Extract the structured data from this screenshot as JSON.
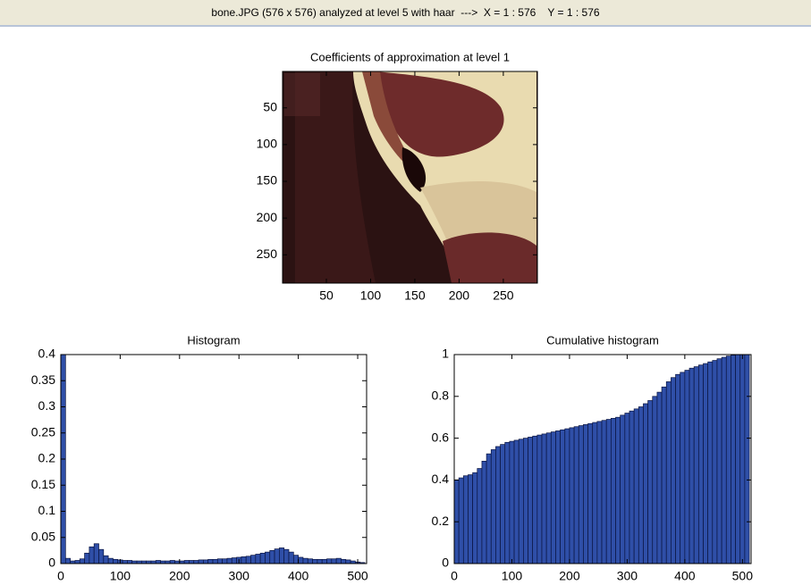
{
  "header": {
    "title": "bone.JPG (576 x 576) analyzed at level 5 with haar  --->  X = 1 : 576    Y = 1 : 576"
  },
  "chart_data": [
    {
      "type": "image",
      "title": "Coefficients of approximation at level 1",
      "xlim": [
        0.5,
        288.5
      ],
      "ylim": [
        0.5,
        288.5
      ],
      "xticks": [
        50,
        100,
        150,
        200,
        250
      ],
      "yticks": [
        50,
        100,
        150,
        200,
        250
      ]
    },
    {
      "type": "histogram",
      "title": "Histogram",
      "color": "#2f4fa8",
      "bins": [
        0,
        8,
        16,
        24,
        32,
        40,
        48,
        56,
        64,
        72,
        80,
        88,
        96,
        104,
        112,
        120,
        128,
        136,
        144,
        152,
        160,
        168,
        176,
        184,
        192,
        200,
        208,
        216,
        224,
        232,
        240,
        248,
        256,
        264,
        272,
        280,
        288,
        296,
        304,
        312,
        320,
        328,
        336,
        344,
        352,
        360,
        368,
        376,
        384,
        392,
        400,
        408,
        416,
        424,
        432,
        440,
        448,
        456,
        464,
        472,
        480,
        488,
        496,
        504,
        512
      ],
      "values": [
        0.4,
        0.01,
        0.005,
        0.006,
        0.009,
        0.02,
        0.032,
        0.038,
        0.027,
        0.015,
        0.01,
        0.008,
        0.007,
        0.006,
        0.006,
        0.005,
        0.005,
        0.005,
        0.005,
        0.005,
        0.006,
        0.005,
        0.005,
        0.006,
        0.005,
        0.005,
        0.006,
        0.006,
        0.006,
        0.007,
        0.007,
        0.008,
        0.008,
        0.009,
        0.009,
        0.01,
        0.011,
        0.012,
        0.013,
        0.014,
        0.016,
        0.018,
        0.02,
        0.022,
        0.025,
        0.028,
        0.03,
        0.027,
        0.022,
        0.016,
        0.012,
        0.01,
        0.009,
        0.008,
        0.008,
        0.008,
        0.009,
        0.009,
        0.01,
        0.008,
        0.007,
        0.005,
        0.003,
        0.002
      ],
      "xlim": [
        0,
        515
      ],
      "ylim": [
        0,
        0.4
      ],
      "xticks": [
        0,
        100,
        200,
        300,
        400,
        500
      ],
      "yticks": [
        0,
        0.05,
        0.1,
        0.15,
        0.2,
        0.25,
        0.3,
        0.35,
        0.4
      ]
    },
    {
      "type": "histogram",
      "title": "Cumulative histogram",
      "color": "#2f4fa8",
      "bins": [
        0,
        8,
        16,
        24,
        32,
        40,
        48,
        56,
        64,
        72,
        80,
        88,
        96,
        104,
        112,
        120,
        128,
        136,
        144,
        152,
        160,
        168,
        176,
        184,
        192,
        200,
        208,
        216,
        224,
        232,
        240,
        248,
        256,
        264,
        272,
        280,
        288,
        296,
        304,
        312,
        320,
        328,
        336,
        344,
        352,
        360,
        368,
        376,
        384,
        392,
        400,
        408,
        416,
        424,
        432,
        440,
        448,
        456,
        464,
        472,
        480,
        488,
        496,
        504,
        512
      ],
      "values": [
        0.4,
        0.41,
        0.42,
        0.425,
        0.435,
        0.455,
        0.49,
        0.525,
        0.545,
        0.56,
        0.57,
        0.58,
        0.585,
        0.59,
        0.595,
        0.6,
        0.605,
        0.61,
        0.615,
        0.62,
        0.625,
        0.63,
        0.635,
        0.64,
        0.645,
        0.65,
        0.655,
        0.66,
        0.665,
        0.67,
        0.675,
        0.68,
        0.685,
        0.69,
        0.695,
        0.7,
        0.71,
        0.72,
        0.73,
        0.74,
        0.75,
        0.765,
        0.78,
        0.8,
        0.82,
        0.845,
        0.87,
        0.89,
        0.905,
        0.915,
        0.925,
        0.935,
        0.942,
        0.95,
        0.957,
        0.965,
        0.972,
        0.98,
        0.987,
        0.993,
        0.997,
        0.999,
        1,
        1
      ],
      "xlim": [
        0,
        515
      ],
      "ylim": [
        0,
        1
      ],
      "xticks": [
        0,
        100,
        200,
        300,
        400,
        500
      ],
      "yticks": [
        0,
        0.2,
        0.4,
        0.6,
        0.8,
        1
      ]
    }
  ]
}
